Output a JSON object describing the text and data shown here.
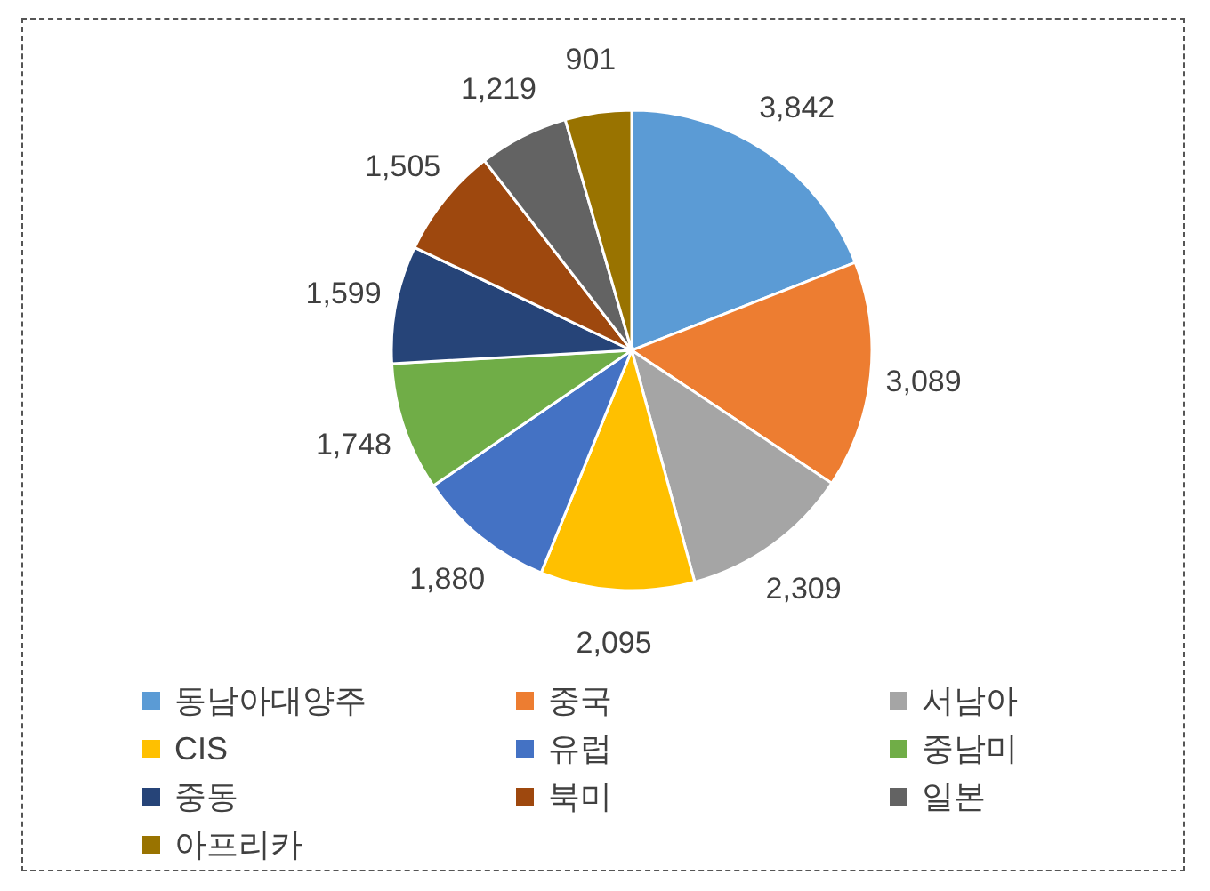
{
  "chart_data": {
    "type": "pie",
    "categories": [
      "동남아대양주",
      "중국",
      "서남아",
      "CIS",
      "유럽",
      "중남미",
      "중동",
      "북미",
      "일본",
      "아프리카"
    ],
    "values": [
      3842,
      3089,
      2309,
      2095,
      1880,
      1748,
      1599,
      1505,
      1219,
      901
    ],
    "value_labels": [
      "3,842",
      "3,089",
      "2,309",
      "2,095",
      "1,880",
      "1,748",
      "1,599",
      "1,505",
      "1,219",
      "901"
    ],
    "colors": [
      "#5b9bd5",
      "#ed7d31",
      "#a5a5a5",
      "#ffc000",
      "#4472c4",
      "#70ad47",
      "#264478",
      "#9e480e",
      "#636363",
      "#997300"
    ],
    "legend": "bottom"
  }
}
